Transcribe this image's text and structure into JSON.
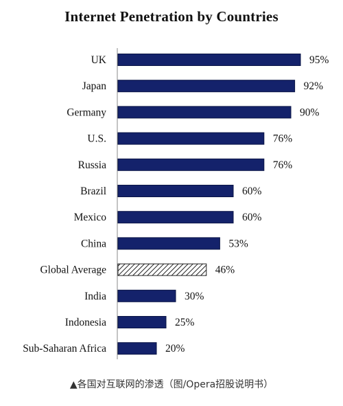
{
  "chart_data": {
    "type": "bar",
    "orientation": "horizontal",
    "title": "Internet Penetration by Countries",
    "categories": [
      "UK",
      "Japan",
      "Germany",
      "U.S.",
      "Russia",
      "Brazil",
      "Mexico",
      "China",
      "Global Average",
      "India",
      "Indonesia",
      "Sub-Saharan Africa"
    ],
    "values": [
      95,
      92,
      90,
      76,
      76,
      60,
      60,
      53,
      46,
      30,
      25,
      20
    ],
    "data_labels": [
      "95%",
      "92%",
      "90%",
      "76%",
      "76%",
      "60%",
      "60%",
      "53%",
      "46%",
      "30%",
      "25%",
      "20%"
    ],
    "highlight_category": "Global Average",
    "xlim": [
      0,
      100
    ],
    "xlabel": "",
    "ylabel": "",
    "grid": false,
    "legend": "none",
    "bar_color": "#14226b",
    "highlight_style": "diagonal-hatch"
  },
  "caption": "▲各国对互联网的渗透（图/Opera招股说明书）"
}
